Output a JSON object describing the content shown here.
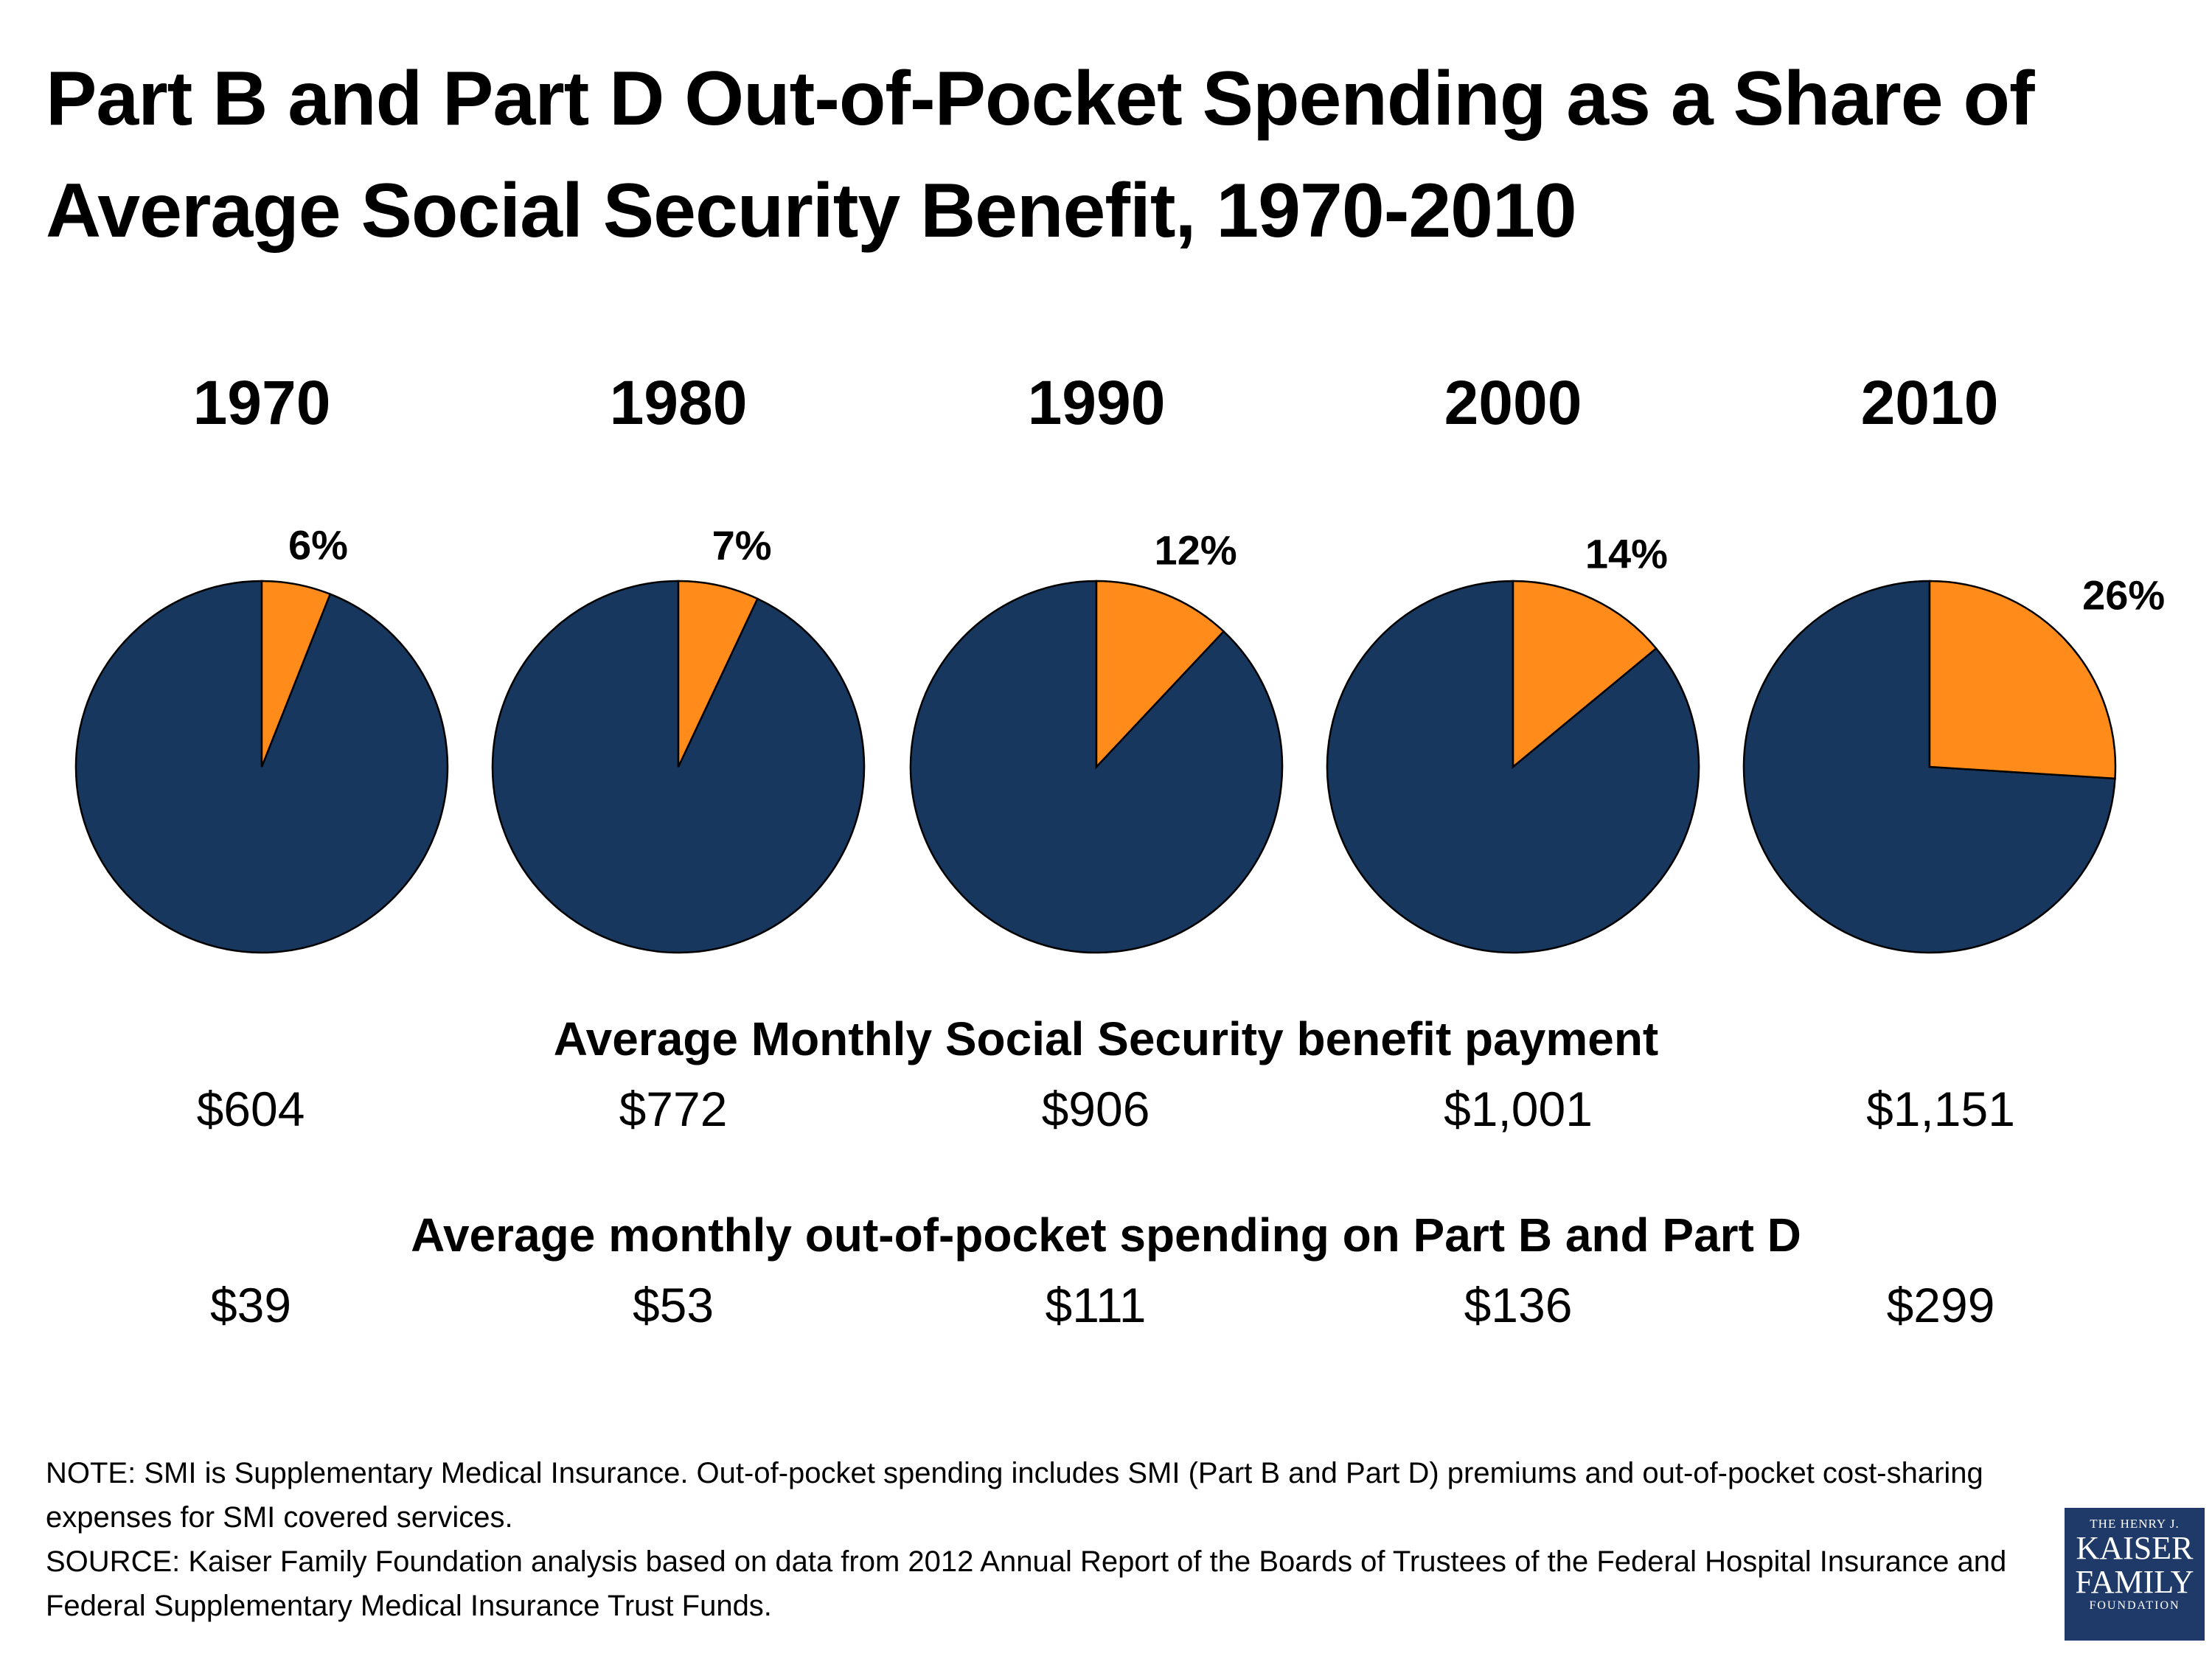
{
  "title": "Part B and Part D Out-of-Pocket Spending as a Share of Average Social Security Benefit, 1970-2010",
  "colors": {
    "share": "#ff8c1a",
    "rest": "#17375e",
    "outline": "#000000"
  },
  "chart_data": {
    "type": "pie",
    "series": [
      {
        "year": "1970",
        "share_pct": 6,
        "label": "6%"
      },
      {
        "year": "1980",
        "share_pct": 7,
        "label": "7%"
      },
      {
        "year": "1990",
        "share_pct": 12,
        "label": "12%"
      },
      {
        "year": "2000",
        "share_pct": 14,
        "label": "14%"
      },
      {
        "year": "2010",
        "share_pct": 26,
        "label": "26%"
      }
    ],
    "legend": "none"
  },
  "benefit": {
    "heading": "Average Monthly Social Security benefit payment",
    "values": [
      "$604",
      "$772",
      "$906",
      "$1,001",
      "$1,151"
    ]
  },
  "oop": {
    "heading": "Average monthly out-of-pocket spending on Part B and Part D",
    "values": [
      "$39",
      "$53",
      "$111",
      "$136",
      "$299"
    ]
  },
  "notes": {
    "note": "NOTE: SMI is Supplementary Medical Insurance. Out-of-pocket spending includes SMI (Part B and Part D) premiums and out-of-pocket cost-sharing expenses for SMI covered services.",
    "source": "SOURCE: Kaiser Family Foundation analysis based on data from 2012 Annual Report of the Boards of Trustees of the Federal Hospital Insurance and Federal Supplementary Medical Insurance Trust Funds."
  },
  "logo": {
    "line1": "THE HENRY J.",
    "line2": "KAISER",
    "line3": "FAMILY",
    "line4": "FOUNDATION"
  }
}
